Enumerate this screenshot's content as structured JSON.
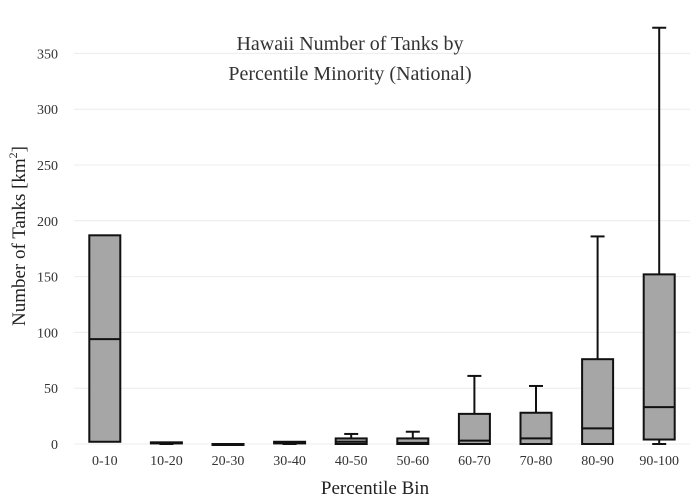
{
  "chart_data": {
    "type": "box",
    "title_lines": [
      "Hawaii Number of Tanks by",
      "Percentile Minority (National)"
    ],
    "xlabel": "Percentile Bin",
    "ylabel": {
      "text": "Number of Tanks  [km",
      "sup": "2",
      "suffix": "]"
    },
    "ylim": [
      0,
      380
    ],
    "yticks": [
      0,
      50,
      100,
      150,
      200,
      250,
      300,
      350
    ],
    "grid": true,
    "categories": [
      "0-10",
      "10-20",
      "20-30",
      "30-40",
      "40-50",
      "50-60",
      "60-70",
      "70-80",
      "80-90",
      "90-100"
    ],
    "boxes": [
      {
        "category": "0-10",
        "min": 2,
        "q1": 2,
        "median": 94,
        "q3": 187,
        "max": 187
      },
      {
        "category": "10-20",
        "min": 0,
        "q1": 0.5,
        "median": 1,
        "q3": 1.5,
        "max": 1.5
      },
      {
        "category": "20-30",
        "min": 0,
        "q1": 0,
        "median": 0,
        "q3": 0,
        "max": 0
      },
      {
        "category": "30-40",
        "min": 0,
        "q1": 0.5,
        "median": 1,
        "q3": 2,
        "max": 2
      },
      {
        "category": "40-50",
        "min": 0,
        "q1": 0,
        "median": 2,
        "q3": 5,
        "max": 9
      },
      {
        "category": "50-60",
        "min": 0,
        "q1": 0,
        "median": 1,
        "q3": 5,
        "max": 11
      },
      {
        "category": "60-70",
        "min": 0,
        "q1": 0,
        "median": 3,
        "q3": 27,
        "max": 61
      },
      {
        "category": "70-80",
        "min": 0,
        "q1": 0,
        "median": 5,
        "q3": 28,
        "max": 52
      },
      {
        "category": "80-90",
        "min": 0,
        "q1": 0,
        "median": 14,
        "q3": 76,
        "max": 186
      },
      {
        "category": "90-100",
        "min": 0,
        "q1": 4,
        "median": 33,
        "q3": 152,
        "max": 373
      }
    ],
    "colors": {
      "box_fill": "#a6a6a6",
      "box_stroke": "#111111",
      "grid": "#ececec"
    }
  }
}
